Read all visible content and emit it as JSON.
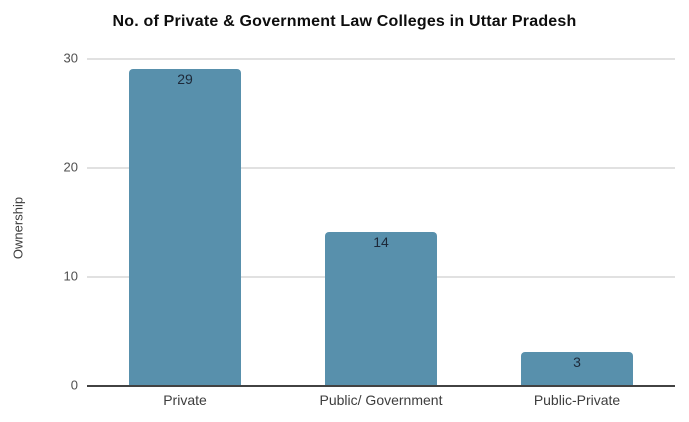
{
  "chart_data": {
    "type": "bar",
    "title": "No. of Private & Government Law Colleges in Uttar Pradesh",
    "categories": [
      "Private",
      "Public/ Government",
      "Public-Private"
    ],
    "values": [
      29,
      14,
      3
    ],
    "xlabel": "",
    "ylabel": "Ownership",
    "ylim": [
      0,
      30
    ],
    "yticks": [
      "0",
      "10",
      "20",
      "30"
    ],
    "grid": "horizontal",
    "legend_position": "none",
    "bar_color": "#5890ac",
    "value_label_color": "#1d2939",
    "gridline_color": "#e1e1e1",
    "axis_line_color": "#424242",
    "background_color": "#ffffff"
  }
}
